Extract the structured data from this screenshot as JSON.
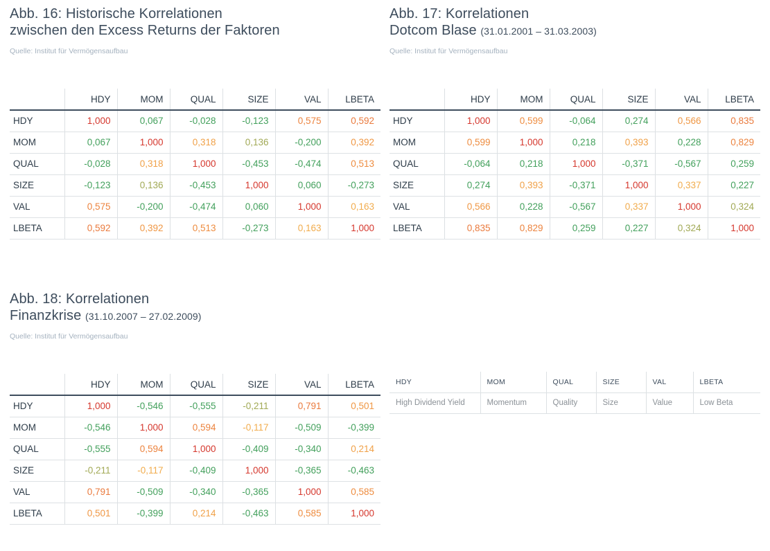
{
  "palette": {
    "title_color": "#3d4c5c",
    "source_color": "#a5b2bf",
    "header_text_color": "#2e3c49",
    "header_border_color": "#3e4d5d",
    "grid_line_color": "#dce0e3",
    "heat_green": "#43a05c",
    "heat_amber": "#f2b14f",
    "heat_orange": "#ee8b3f",
    "heat_deep": "#e5683a",
    "heat_red": "#d5372d"
  },
  "factors": [
    "HDY",
    "MOM",
    "QUAL",
    "SIZE",
    "VAL",
    "LBETA"
  ],
  "figures": [
    {
      "title_line1": "Abb. 16: Historische Korrelationen",
      "title_line2": "zwischen den Excess Returns der Faktoren",
      "title_note": "",
      "source": "Quelle: Institut für Vermögensaufbau"
    },
    {
      "title_line1": "Abb. 17: Korrelationen",
      "title_line2": "Dotcom Blase",
      "title_note": "(31.01.2001 – 31.03.2003)",
      "source": "Quelle: Institut für Vermögensaufbau"
    },
    {
      "title_line1": "Abb. 18: Korrelationen",
      "title_line2": "Finanzkrise",
      "title_note": "(31.10.2007 – 27.02.2009)",
      "source": "Quelle: Institut für Vermögensaufbau"
    }
  ],
  "chart_data": [
    {
      "type": "heatmap",
      "title": "Abb. 16: Historische Korrelationen zwischen den Excess Returns der Faktoren",
      "rows": [
        "HDY",
        "MOM",
        "QUAL",
        "SIZE",
        "VAL",
        "LBETA"
      ],
      "columns": [
        "HDY",
        "MOM",
        "QUAL",
        "SIZE",
        "VAL",
        "LBETA"
      ],
      "value_range": [
        -1,
        1
      ],
      "decimal_separator": ",",
      "matrix": [
        [
          1.0,
          0.067,
          -0.028,
          -0.123,
          0.575,
          0.592
        ],
        [
          0.067,
          1.0,
          0.318,
          0.136,
          -0.2,
          0.392
        ],
        [
          -0.028,
          0.318,
          1.0,
          -0.453,
          -0.474,
          0.513
        ],
        [
          -0.123,
          0.136,
          -0.453,
          1.0,
          0.06,
          -0.273
        ],
        [
          0.575,
          -0.2,
          -0.474,
          0.06,
          1.0,
          0.163
        ],
        [
          0.592,
          0.392,
          0.513,
          -0.273,
          0.163,
          1.0
        ]
      ]
    },
    {
      "type": "heatmap",
      "title": "Abb. 17: Korrelationen Dotcom Blase (31.01.2001 – 31.03.2003)",
      "rows": [
        "HDY",
        "MOM",
        "QUAL",
        "SIZE",
        "VAL",
        "LBETA"
      ],
      "columns": [
        "HDY",
        "MOM",
        "QUAL",
        "SIZE",
        "VAL",
        "LBETA"
      ],
      "value_range": [
        -1,
        1
      ],
      "decimal_separator": ",",
      "matrix": [
        [
          1.0,
          0.599,
          -0.064,
          0.274,
          0.566,
          0.835
        ],
        [
          0.599,
          1.0,
          0.218,
          0.393,
          0.228,
          0.829
        ],
        [
          -0.064,
          0.218,
          1.0,
          -0.371,
          -0.567,
          0.259
        ],
        [
          0.274,
          0.393,
          -0.371,
          1.0,
          0.337,
          0.227
        ],
        [
          0.566,
          0.228,
          -0.567,
          0.337,
          1.0,
          0.324
        ],
        [
          0.835,
          0.829,
          0.259,
          0.227,
          0.324,
          1.0
        ]
      ]
    },
    {
      "type": "heatmap",
      "title": "Abb. 18: Korrelationen Finanzkrise (31.10.2007 – 27.02.2009)",
      "rows": [
        "HDY",
        "MOM",
        "QUAL",
        "SIZE",
        "VAL",
        "LBETA"
      ],
      "columns": [
        "HDY",
        "MOM",
        "QUAL",
        "SIZE",
        "VAL",
        "LBETA"
      ],
      "value_range": [
        -1,
        1
      ],
      "decimal_separator": ",",
      "matrix": [
        [
          1.0,
          -0.546,
          -0.555,
          -0.211,
          0.791,
          0.501
        ],
        [
          -0.546,
          1.0,
          0.594,
          -0.117,
          -0.509,
          -0.399
        ],
        [
          -0.555,
          0.594,
          1.0,
          -0.409,
          -0.34,
          0.214
        ],
        [
          -0.211,
          -0.117,
          -0.409,
          1.0,
          -0.365,
          -0.463
        ],
        [
          0.791,
          -0.509,
          -0.34,
          -0.365,
          1.0,
          0.585
        ],
        [
          0.501,
          -0.399,
          0.214,
          -0.463,
          0.585,
          1.0
        ]
      ]
    }
  ],
  "legend": {
    "headers": [
      "HDY",
      "MOM",
      "QUAL",
      "SIZE",
      "VAL",
      "LBETA"
    ],
    "values": [
      "High Dividend Yield",
      "Momentum",
      "Quality",
      "Size",
      "Value",
      "Low Beta"
    ]
  }
}
